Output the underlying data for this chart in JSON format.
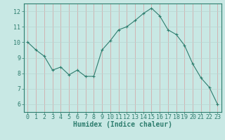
{
  "x": [
    0,
    1,
    2,
    3,
    4,
    5,
    6,
    7,
    8,
    9,
    10,
    11,
    12,
    13,
    14,
    15,
    16,
    17,
    18,
    19,
    20,
    21,
    22,
    23
  ],
  "y": [
    10.0,
    9.5,
    9.1,
    8.2,
    8.4,
    7.9,
    8.2,
    7.8,
    7.8,
    9.5,
    10.1,
    10.8,
    11.0,
    11.4,
    11.85,
    12.2,
    11.7,
    10.8,
    10.5,
    9.8,
    8.6,
    7.7,
    7.1,
    6.0
  ],
  "xlabel": "Humidex (Indice chaleur)",
  "ylim": [
    5.5,
    12.5
  ],
  "xlim": [
    -0.5,
    23.5
  ],
  "yticks": [
    6,
    7,
    8,
    9,
    10,
    11,
    12
  ],
  "xticks": [
    0,
    1,
    2,
    3,
    4,
    5,
    6,
    7,
    8,
    9,
    10,
    11,
    12,
    13,
    14,
    15,
    16,
    17,
    18,
    19,
    20,
    21,
    22,
    23
  ],
  "line_color": "#2e7d6e",
  "marker_color": "#2e7d6e",
  "bg_plot": "#c8e8e4",
  "bg_fig": "#c8e8e4",
  "grid_color_vertical": "#d4a0a0",
  "grid_color_horizontal": "#b8d4d0",
  "tick_label_fontsize": 6,
  "xlabel_fontsize": 7,
  "spine_color": "#2e7d6e"
}
